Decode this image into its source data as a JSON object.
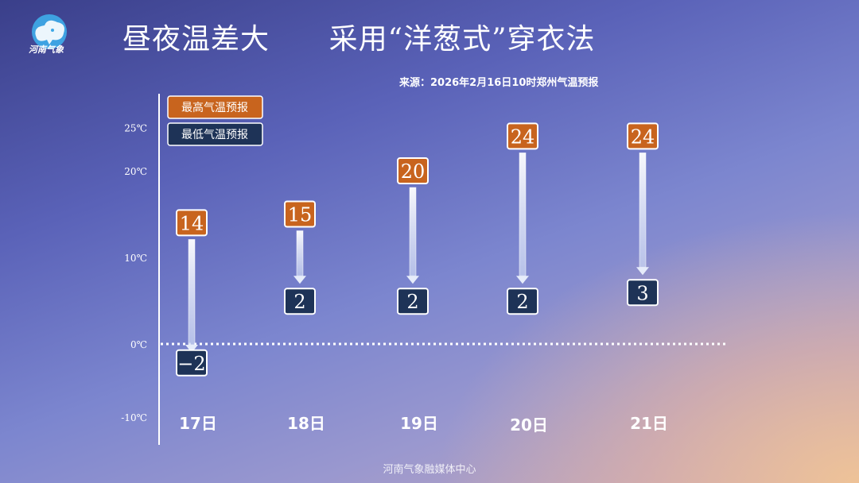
{
  "header": {
    "logo_text": "河南气象",
    "title": "昼夜温差大      采用“洋葱式”穿衣法",
    "source": "来源：2026年2月16日10时郑州气温预报"
  },
  "footer": {
    "text": "河南气象融媒体中心"
  },
  "colors": {
    "high_box": "#c8641e",
    "low_box": "#1e3357",
    "box_border": "#ffffff",
    "zero_line": "#ffffff"
  },
  "icons": {
    "logo": "elephant-cloud-icon"
  },
  "chart_data": {
    "type": "range-bar",
    "categories": [
      "17日",
      "18日",
      "19日",
      "20日",
      "21日"
    ],
    "series": [
      {
        "name": "最高气温预报",
        "values": [
          14,
          15,
          20,
          24,
          24
        ]
      },
      {
        "name": "最低气温预报",
        "values": [
          -2,
          2,
          2,
          2,
          3
        ]
      }
    ],
    "y_ticks": [
      {
        "value": 25,
        "label": "25℃"
      },
      {
        "value": 20,
        "label": "20℃"
      },
      {
        "value": 10,
        "label": "10℃"
      },
      {
        "value": 0,
        "label": "0℃"
      },
      {
        "value": -10,
        "label": "-10℃"
      }
    ],
    "ylim": [
      -10,
      25
    ],
    "legend_position": "top-left",
    "reference_line": 0,
    "grid": false
  }
}
